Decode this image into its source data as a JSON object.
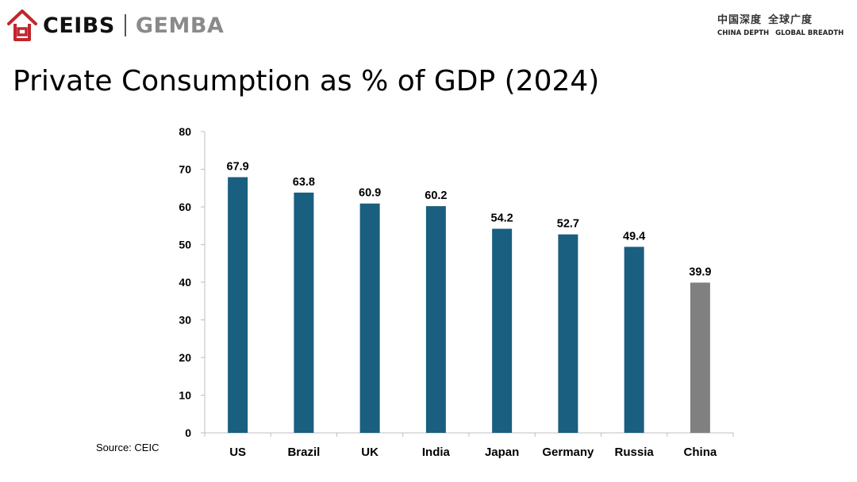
{
  "header": {
    "logo_text": "CEIBS",
    "logo_sub": "GEMBA",
    "tagline_cn_1": "中国深度",
    "tagline_cn_2": "全球广度",
    "tagline_en_1": "CHINA DEPTH",
    "tagline_en_2": "GLOBAL BREADTH",
    "brand_color": "#c0262c"
  },
  "slide": {
    "title": "Private Consumption as % of GDP (2024)",
    "source": "Source: CEIC"
  },
  "chart_data": {
    "type": "bar",
    "title": "Private Consumption as % of GDP (2024)",
    "xlabel": "",
    "ylabel": "",
    "categories": [
      "US",
      "Brazil",
      "UK",
      "India",
      "Japan",
      "Germany",
      "Russia",
      "China"
    ],
    "values": [
      67.9,
      63.8,
      60.9,
      60.2,
      54.2,
      52.7,
      49.4,
      39.9
    ],
    "data_labels": [
      "67.9",
      "63.8",
      "60.9",
      "60.2",
      "54.2",
      "52.7",
      "49.4",
      "39.9"
    ],
    "ylim": [
      0,
      80
    ],
    "yticks": [
      0,
      10,
      20,
      30,
      40,
      50,
      60,
      70,
      80
    ],
    "grid": false,
    "legend": "none",
    "colors": {
      "default": "#1a5e80",
      "highlight": "#808080",
      "highlight_category": "China"
    }
  }
}
